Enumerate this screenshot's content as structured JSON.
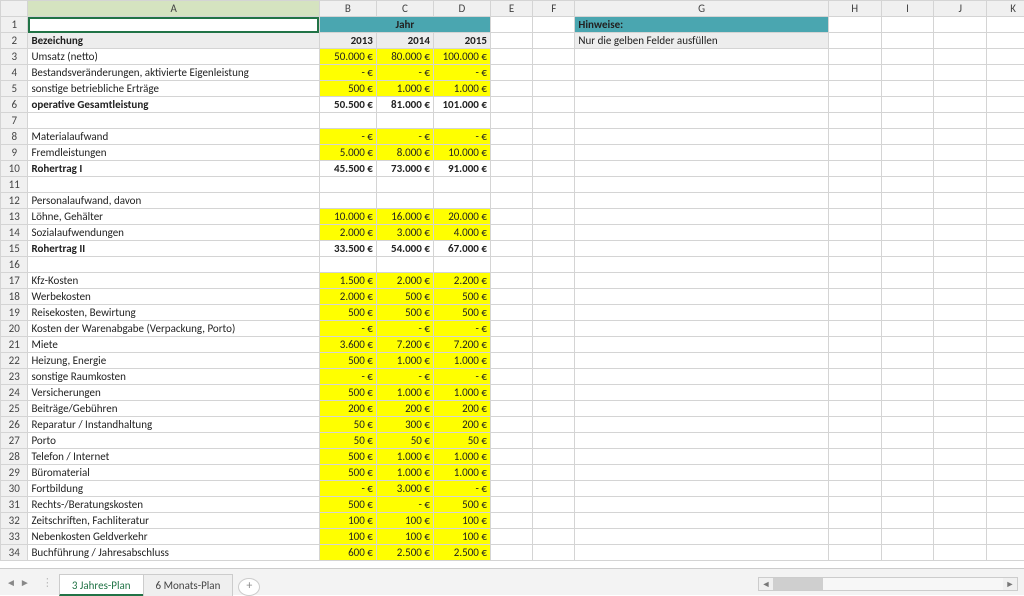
{
  "columns": [
    "A",
    "B",
    "C",
    "D",
    "E",
    "F",
    "G",
    "H",
    "I",
    "J",
    "K"
  ],
  "header": {
    "jahr": "Jahr",
    "bezeichnung": "Bezeichung",
    "y2013": "2013",
    "y2014": "2014",
    "y2015": "2015",
    "hinweise": "Hinweise:",
    "note": "Nur die gelben Felder ausfüllen"
  },
  "rows": [
    {
      "n": 3,
      "label": "Umsatz (netto)",
      "y": [
        "50.000 €",
        "80.000 €",
        "100.000 €"
      ],
      "yellow": true
    },
    {
      "n": 4,
      "label": "Bestandsveränderungen, aktivierte Eigenleistung",
      "y": [
        "-   €",
        "-   €",
        "-   €"
      ],
      "yellow": true
    },
    {
      "n": 5,
      "label": "sonstige betriebliche Erträge",
      "y": [
        "500 €",
        "1.000 €",
        "1.000 €"
      ],
      "yellow": true
    },
    {
      "n": 6,
      "label": "operative Gesamtleistung",
      "y": [
        "50.500 €",
        "81.000 €",
        "101.000 €"
      ],
      "bold": true
    },
    {
      "n": 7,
      "label": "",
      "y": [
        "",
        "",
        ""
      ]
    },
    {
      "n": 8,
      "label": "Materialaufwand",
      "y": [
        "-   €",
        "-   €",
        "-   €"
      ],
      "yellow": true
    },
    {
      "n": 9,
      "label": "Fremdleistungen",
      "y": [
        "5.000 €",
        "8.000 €",
        "10.000 €"
      ],
      "yellow": true
    },
    {
      "n": 10,
      "label": "Rohertrag I",
      "y": [
        "45.500 €",
        "73.000 €",
        "91.000 €"
      ],
      "bold": true
    },
    {
      "n": 11,
      "label": "",
      "y": [
        "",
        "",
        ""
      ]
    },
    {
      "n": 12,
      "label": "Personalaufwand, davon",
      "y": [
        "",
        "",
        ""
      ]
    },
    {
      "n": 13,
      "label": "Löhne, Gehälter",
      "y": [
        "10.000 €",
        "16.000 €",
        "20.000 €"
      ],
      "yellow": true,
      "indent": true
    },
    {
      "n": 14,
      "label": "Sozialaufwendungen",
      "y": [
        "2.000 €",
        "3.000 €",
        "4.000 €"
      ],
      "yellow": true,
      "indent": true
    },
    {
      "n": 15,
      "label": "Rohertrag II",
      "y": [
        "33.500 €",
        "54.000 €",
        "67.000 €"
      ],
      "bold": true
    },
    {
      "n": 16,
      "label": "",
      "y": [
        "",
        "",
        ""
      ]
    },
    {
      "n": 17,
      "label": "Kfz-Kosten",
      "y": [
        "1.500 €",
        "2.000 €",
        "2.200 €"
      ],
      "yellow": true
    },
    {
      "n": 18,
      "label": "Werbekosten",
      "y": [
        "2.000 €",
        "500 €",
        "500 €"
      ],
      "yellow": true
    },
    {
      "n": 19,
      "label": "Reisekosten, Bewirtung",
      "y": [
        "500 €",
        "500 €",
        "500 €"
      ],
      "yellow": true
    },
    {
      "n": 20,
      "label": "Kosten der Warenabgabe (Verpackung, Porto)",
      "y": [
        "-   €",
        "-   €",
        "-   €"
      ],
      "yellow": true
    },
    {
      "n": 21,
      "label": "Miete",
      "y": [
        "3.600 €",
        "7.200 €",
        "7.200 €"
      ],
      "yellow": true
    },
    {
      "n": 22,
      "label": "Heizung, Energie",
      "y": [
        "500 €",
        "1.000 €",
        "1.000 €"
      ],
      "yellow": true
    },
    {
      "n": 23,
      "label": "sonstige Raumkosten",
      "y": [
        "-   €",
        "-   €",
        "-   €"
      ],
      "yellow": true
    },
    {
      "n": 24,
      "label": "Versicherungen",
      "y": [
        "500 €",
        "1.000 €",
        "1.000 €"
      ],
      "yellow": true
    },
    {
      "n": 25,
      "label": "Beiträge/Gebühren",
      "y": [
        "200 €",
        "200 €",
        "200 €"
      ],
      "yellow": true
    },
    {
      "n": 26,
      "label": "Reparatur / Instandhaltung",
      "y": [
        "50 €",
        "300 €",
        "200 €"
      ],
      "yellow": true
    },
    {
      "n": 27,
      "label": "Porto",
      "y": [
        "50 €",
        "50 €",
        "50 €"
      ],
      "yellow": true
    },
    {
      "n": 28,
      "label": "Telefon / Internet",
      "y": [
        "500 €",
        "1.000 €",
        "1.000 €"
      ],
      "yellow": true
    },
    {
      "n": 29,
      "label": "Büromaterial",
      "y": [
        "500 €",
        "1.000 €",
        "1.000 €"
      ],
      "yellow": true
    },
    {
      "n": 30,
      "label": "Fortbildung",
      "y": [
        "-   €",
        "3.000 €",
        "-   €"
      ],
      "yellow": true
    },
    {
      "n": 31,
      "label": "Rechts-/Beratungskosten",
      "y": [
        "500 €",
        "-   €",
        "500 €"
      ],
      "yellow": true
    },
    {
      "n": 32,
      "label": "Zeitschriften, Fachliteratur",
      "y": [
        "100 €",
        "100 €",
        "100 €"
      ],
      "yellow": true
    },
    {
      "n": 33,
      "label": "Nebenkosten Geldverkehr",
      "y": [
        "100 €",
        "100 €",
        "100 €"
      ],
      "yellow": true
    },
    {
      "n": 34,
      "label": "Buchführung / Jahresabschluss",
      "y": [
        "600 €",
        "2.500 €",
        "2.500 €"
      ],
      "yellow": true
    }
  ],
  "tabs": {
    "active": "3 Jahres-Plan",
    "other": "6 Monats-Plan"
  },
  "nav": {
    "first": "|◄",
    "prev": "◄",
    "next": "►",
    "last": "►|"
  },
  "colors": {
    "teal": "#4aa6b0",
    "yellow": "#ffff00",
    "grid": "#d4d4d4",
    "selection": "#217346"
  }
}
